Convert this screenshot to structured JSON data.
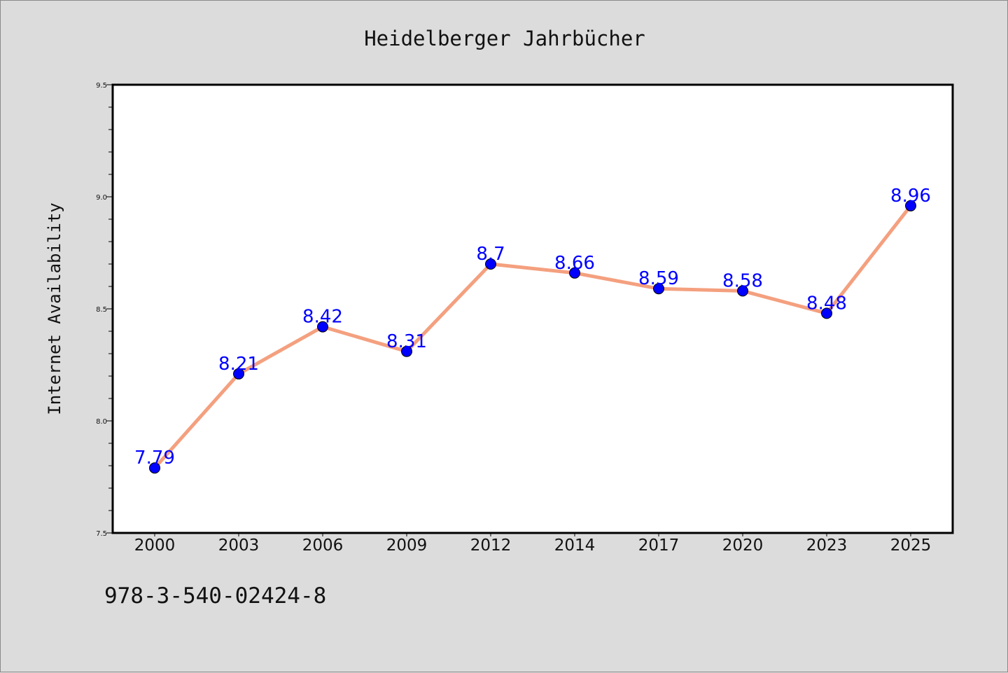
{
  "chart_data": {
    "type": "line",
    "title": "Heidelberger Jahrbücher",
    "xlabel": "",
    "ylabel": "Internet Availability",
    "categories": [
      "2000",
      "2003",
      "2006",
      "2009",
      "2012",
      "2014",
      "2017",
      "2020",
      "2023",
      "2025"
    ],
    "values": [
      7.79,
      8.21,
      8.42,
      8.31,
      8.7,
      8.66,
      8.59,
      8.58,
      8.48,
      8.96
    ],
    "data_labels": [
      "7.79",
      "8.21",
      "8.42",
      "8.31",
      "8.7",
      "8.66",
      "8.59",
      "8.58",
      "8.48",
      "8.96"
    ],
    "ylim": [
      7.5,
      9.5
    ],
    "yticks": [
      "7.5",
      "8.0",
      "8.5",
      "9.0",
      "9.5"
    ],
    "grid": false,
    "legend": "none",
    "colors": {
      "line": "#f4a07f",
      "marker": "#0000ff",
      "data_label": "#0000ff",
      "background": "#dcdcdc",
      "plot_area": "#ffffff"
    }
  },
  "footer": {
    "note": "978-3-540-02424-8"
  }
}
